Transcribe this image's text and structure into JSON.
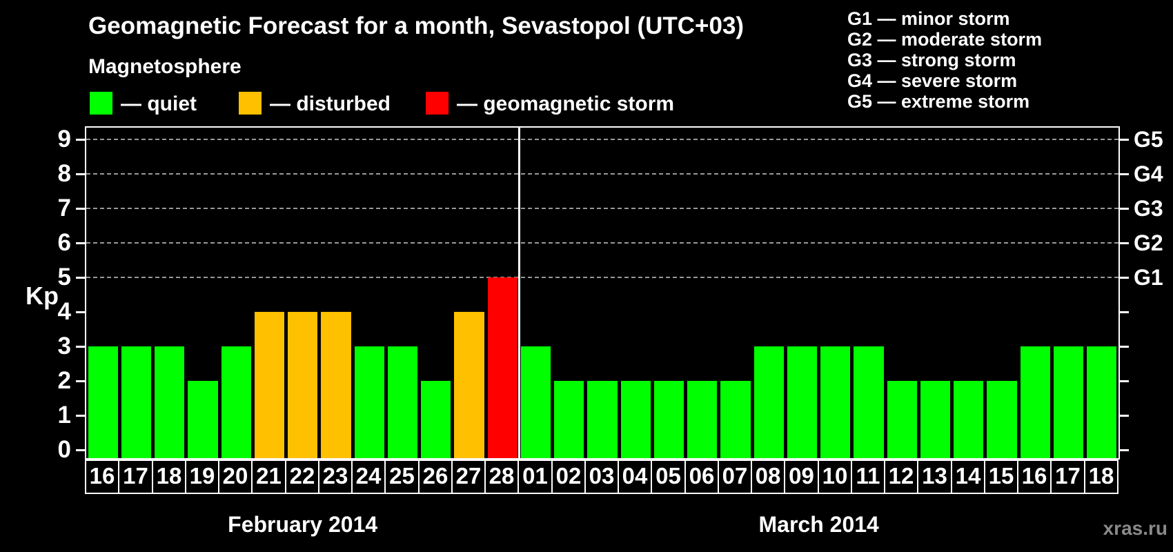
{
  "header": {
    "legend_title": "Magnetosphere",
    "legend_items": [
      {
        "swatch": "quiet",
        "label": "— quiet"
      },
      {
        "swatch": "disturbed",
        "label": "— disturbed"
      },
      {
        "swatch": "storm",
        "label": "— geomagnetic storm"
      }
    ],
    "g_legend": [
      "G1 — minor storm",
      "G2 — moderate storm",
      "G3 — strong storm",
      "G4 — severe storm",
      "G5 — extreme storm"
    ]
  },
  "chart_data": {
    "type": "bar",
    "title": "Geomagnetic Forecast for a month, Sevastopol (UTC+03)",
    "ylabel": "Kp",
    "ylim": [
      0,
      9
    ],
    "grid": "dashed-at-storm-levels",
    "grid_levels": [
      5,
      6,
      7,
      8,
      9
    ],
    "y_ticks": [
      0,
      1,
      2,
      3,
      4,
      5,
      6,
      7,
      8,
      9
    ],
    "right_axis": [
      {
        "kp": 5,
        "label": "G1"
      },
      {
        "kp": 6,
        "label": "G2"
      },
      {
        "kp": 7,
        "label": "G3"
      },
      {
        "kp": 8,
        "label": "G4"
      },
      {
        "kp": 9,
        "label": "G5"
      }
    ],
    "state_colors": {
      "quiet": "#00ff00",
      "disturbed": "#ffc000",
      "storm": "#ff0000"
    },
    "months": [
      {
        "label": "February 2014",
        "days": [
          {
            "date": "16",
            "kp": 3,
            "state": "quiet"
          },
          {
            "date": "17",
            "kp": 3,
            "state": "quiet"
          },
          {
            "date": "18",
            "kp": 3,
            "state": "quiet"
          },
          {
            "date": "19",
            "kp": 2,
            "state": "quiet"
          },
          {
            "date": "20",
            "kp": 3,
            "state": "quiet"
          },
          {
            "date": "21",
            "kp": 4,
            "state": "disturbed"
          },
          {
            "date": "22",
            "kp": 4,
            "state": "disturbed"
          },
          {
            "date": "23",
            "kp": 4,
            "state": "disturbed"
          },
          {
            "date": "24",
            "kp": 3,
            "state": "quiet"
          },
          {
            "date": "25",
            "kp": 3,
            "state": "quiet"
          },
          {
            "date": "26",
            "kp": 2,
            "state": "quiet"
          },
          {
            "date": "27",
            "kp": 4,
            "state": "disturbed"
          },
          {
            "date": "28",
            "kp": 5,
            "state": "storm"
          }
        ]
      },
      {
        "label": "March 2014",
        "days": [
          {
            "date": "01",
            "kp": 3,
            "state": "quiet"
          },
          {
            "date": "02",
            "kp": 2,
            "state": "quiet"
          },
          {
            "date": "03",
            "kp": 2,
            "state": "quiet"
          },
          {
            "date": "04",
            "kp": 2,
            "state": "quiet"
          },
          {
            "date": "05",
            "kp": 2,
            "state": "quiet"
          },
          {
            "date": "06",
            "kp": 2,
            "state": "quiet"
          },
          {
            "date": "07",
            "kp": 2,
            "state": "quiet"
          },
          {
            "date": "08",
            "kp": 3,
            "state": "quiet"
          },
          {
            "date": "09",
            "kp": 3,
            "state": "quiet"
          },
          {
            "date": "10",
            "kp": 3,
            "state": "quiet"
          },
          {
            "date": "11",
            "kp": 3,
            "state": "quiet"
          },
          {
            "date": "12",
            "kp": 2,
            "state": "quiet"
          },
          {
            "date": "13",
            "kp": 2,
            "state": "quiet"
          },
          {
            "date": "14",
            "kp": 2,
            "state": "quiet"
          },
          {
            "date": "15",
            "kp": 2,
            "state": "quiet"
          },
          {
            "date": "16",
            "kp": 3,
            "state": "quiet"
          },
          {
            "date": "17",
            "kp": 3,
            "state": "quiet"
          },
          {
            "date": "18",
            "kp": 3,
            "state": "quiet"
          }
        ]
      }
    ]
  },
  "watermark": "xras.ru"
}
